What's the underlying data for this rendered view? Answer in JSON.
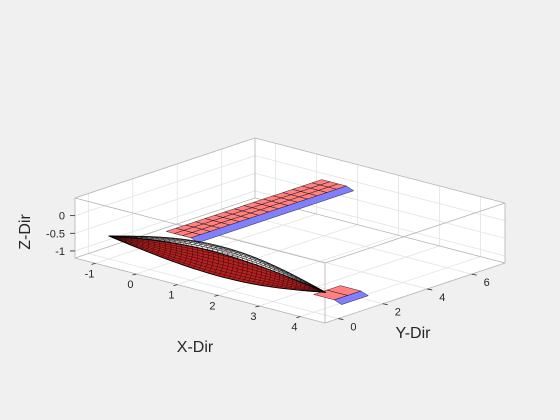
{
  "chart_data": {
    "type": "surface3d",
    "title": "",
    "xlabel": "X-Dir",
    "ylabel": "Y-Dir",
    "zlabel": "Z-Dir",
    "xlim": [
      -1.5,
      4.6
    ],
    "ylim": [
      -0.6,
      7.5
    ],
    "zlim": [
      -1.2,
      0.5
    ],
    "x_ticks": [
      "-1",
      "0",
      "1",
      "2",
      "3",
      "4"
    ],
    "y_ticks": [
      "0",
      "2",
      "4",
      "6"
    ],
    "z_ticks": [
      "0",
      "-0.5",
      "-1"
    ],
    "grid": true,
    "colors": {
      "background": "#f0f0f0",
      "axes_face": "#ffffff",
      "grid": "#e3e3e3",
      "box": "#b3b3b3",
      "wing_top": "#ff8080",
      "wing_bottom": "#8080ff",
      "fuselage": "#b52020",
      "edges": "#000000"
    },
    "surfaces": [
      {
        "name": "wing",
        "panel_color_top": "#ff8080",
        "panel_color_bottom": "#8080ff",
        "x_range": [
          0.4,
          1.0
        ],
        "y_range": [
          0.0,
          7.0
        ],
        "z": 0.0,
        "chord_panels": 3,
        "span_panels": 16
      },
      {
        "name": "tail",
        "panel_color_top": "#ff8080",
        "panel_color_bottom": "#8080ff",
        "x_range": [
          4.0,
          4.5
        ],
        "y_range": [
          0.0,
          1.2
        ],
        "z": -0.7,
        "chord_panels": 1,
        "span_panels": 2
      },
      {
        "name": "fuselage",
        "panel_color": "#b52020",
        "x_range": [
          -1.0,
          4.3
        ],
        "max_radius": 0.5,
        "axis_z": -0.55
      }
    ]
  }
}
